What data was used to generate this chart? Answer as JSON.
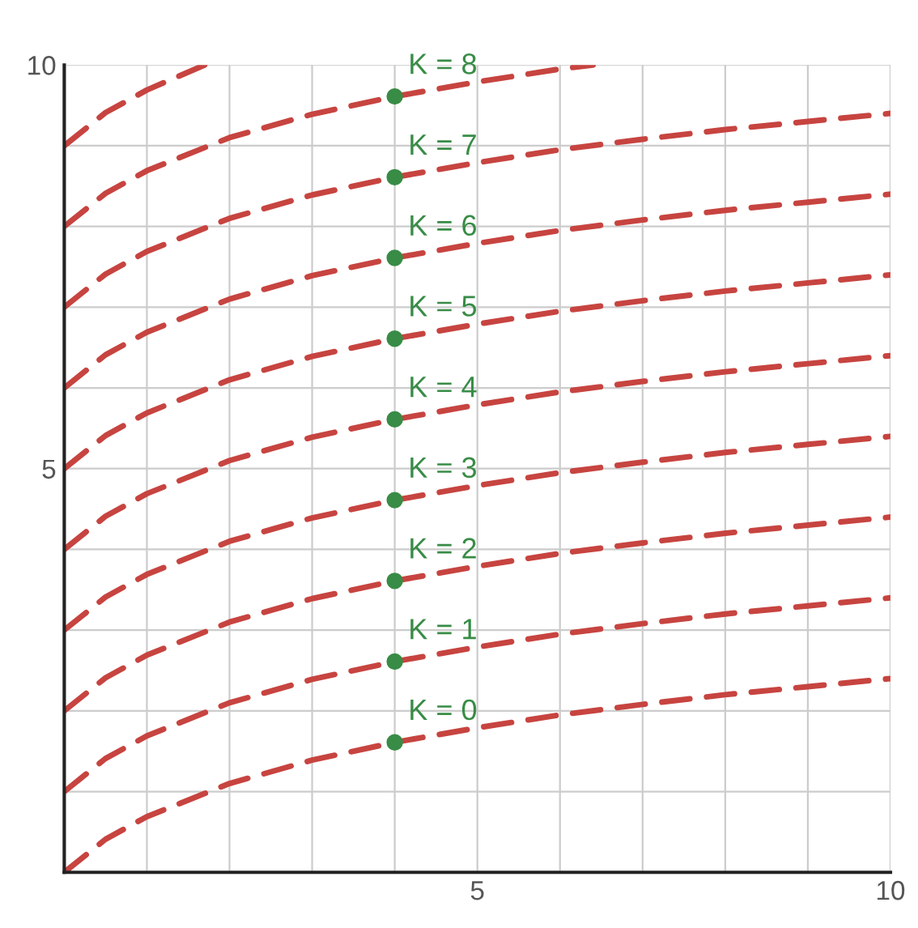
{
  "chart_data": {
    "type": "line",
    "xlim": [
      0,
      10
    ],
    "ylim": [
      0,
      10
    ],
    "xticks": [
      {
        "value": 0,
        "label": null
      },
      {
        "value": 1,
        "label": null
      },
      {
        "value": 2,
        "label": null
      },
      {
        "value": 3,
        "label": null
      },
      {
        "value": 4,
        "label": null
      },
      5,
      {
        "value": 6,
        "label": null
      },
      {
        "value": 7,
        "label": null
      },
      {
        "value": 8,
        "label": null
      },
      {
        "value": 9,
        "label": null
      },
      10
    ],
    "yticks": [
      {
        "value": 0,
        "label": null
      },
      {
        "value": 1,
        "label": null
      },
      {
        "value": 2,
        "label": null
      },
      {
        "value": 3,
        "label": null
      },
      {
        "value": 4,
        "label": null
      },
      5,
      {
        "value": 6,
        "label": null
      },
      {
        "value": 7,
        "label": null
      },
      {
        "value": 8,
        "label": null
      },
      {
        "value": 9,
        "label": null
      },
      10
    ],
    "grid": true,
    "line_style": "dashed",
    "marker": "none",
    "series": [
      {
        "type": "line",
        "color": "#c74440",
        "x": [
          0,
          0.5,
          1,
          2,
          3,
          4,
          5,
          6,
          7,
          8,
          9,
          10
        ],
        "values": [
          0,
          0.41,
          0.69,
          1.1,
          1.39,
          1.61,
          1.79,
          1.95,
          2.08,
          2.2,
          2.3,
          2.4
        ]
      },
      {
        "type": "line",
        "color": "#c74440",
        "x": [
          0,
          0.5,
          1,
          2,
          3,
          4,
          5,
          6,
          7,
          8,
          9,
          10
        ],
        "values": [
          1,
          1.41,
          1.69,
          2.1,
          2.39,
          2.61,
          2.79,
          2.95,
          3.08,
          3.2,
          3.3,
          3.4
        ]
      },
      {
        "type": "line",
        "color": "#c74440",
        "x": [
          0,
          0.5,
          1,
          2,
          3,
          4,
          5,
          6,
          7,
          8,
          9,
          10
        ],
        "values": [
          2,
          2.41,
          2.69,
          3.1,
          3.39,
          3.61,
          3.79,
          3.95,
          4.08,
          4.2,
          4.3,
          4.4
        ]
      },
      {
        "type": "line",
        "color": "#c74440",
        "x": [
          0,
          0.5,
          1,
          2,
          3,
          4,
          5,
          6,
          7,
          8,
          9,
          10
        ],
        "values": [
          3,
          3.41,
          3.69,
          4.1,
          4.39,
          4.61,
          4.79,
          4.95,
          5.08,
          5.2,
          5.3,
          5.4
        ]
      },
      {
        "type": "line",
        "color": "#c74440",
        "x": [
          0,
          0.5,
          1,
          2,
          3,
          4,
          5,
          6,
          7,
          8,
          9,
          10
        ],
        "values": [
          4,
          4.41,
          4.69,
          5.1,
          5.39,
          5.61,
          5.79,
          5.95,
          6.08,
          6.2,
          6.3,
          6.4
        ]
      },
      {
        "type": "line",
        "color": "#c74440",
        "x": [
          0,
          0.5,
          1,
          2,
          3,
          4,
          5,
          6,
          7,
          8,
          9,
          10
        ],
        "values": [
          5,
          5.41,
          5.69,
          6.1,
          6.39,
          6.61,
          6.79,
          6.95,
          7.08,
          7.2,
          7.3,
          7.4
        ]
      },
      {
        "type": "line",
        "color": "#c74440",
        "x": [
          0,
          0.5,
          1,
          2,
          3,
          4,
          5,
          6,
          7,
          8,
          9,
          10
        ],
        "values": [
          6,
          6.41,
          6.69,
          7.1,
          7.39,
          7.61,
          7.79,
          7.95,
          8.08,
          8.2,
          8.3,
          8.4
        ]
      },
      {
        "type": "line",
        "color": "#c74440",
        "x": [
          0,
          0.5,
          1,
          2,
          3,
          4,
          5,
          6,
          7,
          8,
          9,
          10
        ],
        "values": [
          7,
          7.41,
          7.69,
          8.1,
          8.39,
          8.61,
          8.79,
          8.95,
          9.08,
          9.2,
          9.3,
          9.4
        ]
      },
      {
        "type": "line",
        "color": "#c74440",
        "x": [
          0,
          0.5,
          1,
          2,
          3,
          4,
          5,
          6,
          6.4
        ],
        "values": [
          8,
          8.41,
          8.69,
          9.1,
          9.39,
          9.61,
          9.79,
          9.95,
          10
        ]
      },
      {
        "type": "line",
        "color": "#c74440",
        "x": [
          0,
          0.5,
          1,
          1.7
        ],
        "values": [
          9,
          9.41,
          9.69,
          10
        ]
      },
      {
        "type": "scatter",
        "marker": "circle",
        "color": "#388c46",
        "x": [
          4,
          4,
          4,
          4,
          4,
          4,
          4,
          4,
          4
        ],
        "values": [
          1.61,
          2.61,
          3.61,
          4.61,
          5.61,
          6.61,
          7.61,
          8.61,
          9.61
        ]
      }
    ],
    "annotations": [
      {
        "text": "K = 0",
        "y": 1.61
      },
      {
        "text": "K = 1",
        "y": 2.61
      },
      {
        "text": "K = 2",
        "y": 3.61
      },
      {
        "text": "K = 3",
        "y": 4.61
      },
      {
        "text": "K = 4",
        "y": 5.61
      },
      {
        "text": "K = 5",
        "y": 6.61
      },
      {
        "text": "K = 6",
        "y": 7.61
      },
      {
        "text": "K = 7",
        "y": 8.61
      },
      {
        "text": "K = 8",
        "y": 9.61
      }
    ]
  }
}
